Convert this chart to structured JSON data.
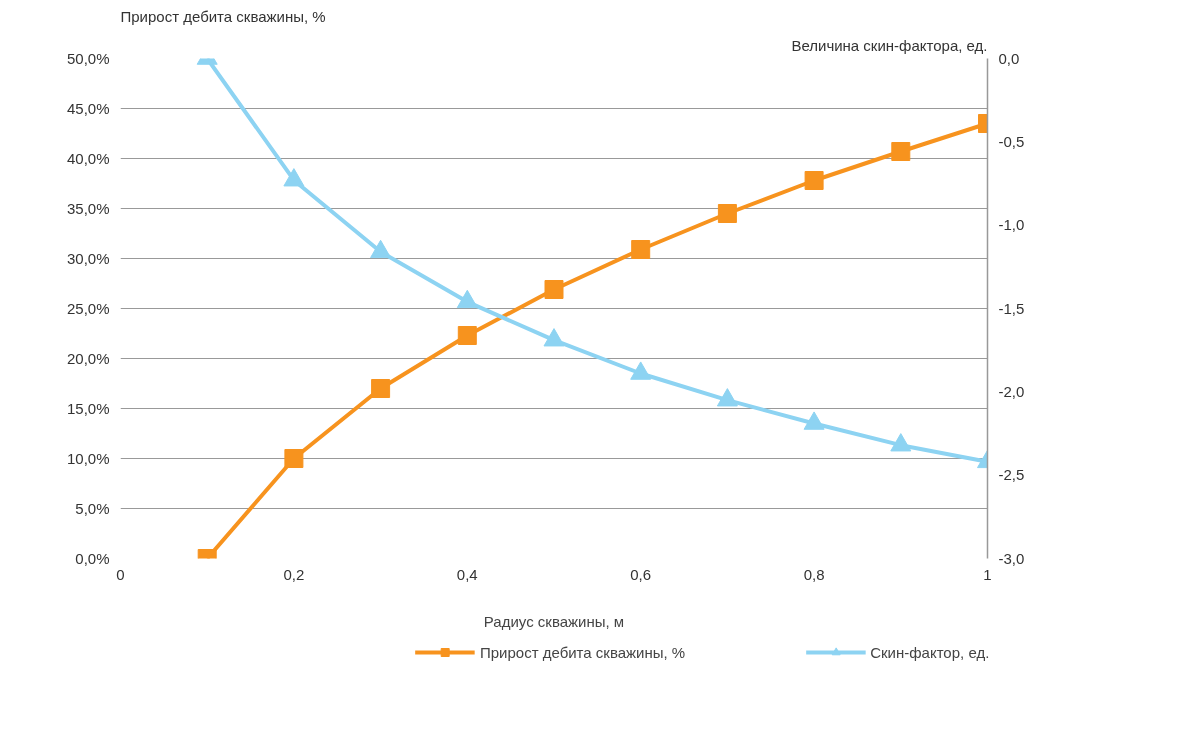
{
  "chart_data": {
    "type": "line",
    "xlabel": "Радиус скважины, м",
    "ylabel": "Прирост дебита скважины, %",
    "y2label": "Величина скин-фактора, ед.",
    "x": [
      0.1,
      0.2,
      0.3,
      0.4,
      0.5,
      0.6,
      0.7,
      0.8,
      0.9,
      1.0
    ],
    "series": [
      {
        "name": "Прирост дебита скважины, %",
        "color": "#f7931e",
        "marker": "square",
        "values": [
          0,
          10.0,
          17.0,
          22.3,
          26.9,
          30.9,
          34.5,
          37.8,
          40.7,
          43.5
        ]
      },
      {
        "name": "Скин-фактор, ед.",
        "color": "#8dd3f2",
        "marker": "triangle",
        "axis": "y2",
        "values": [
          0,
          -0.73,
          -1.16,
          -1.46,
          -1.69,
          -1.89,
          -2.05,
          -2.19,
          -2.32,
          -2.42
        ]
      }
    ],
    "xlim": [
      0,
      1
    ],
    "xticks": [
      0,
      {
        "value": 0.2,
        "label": "0,2"
      },
      {
        "value": 0.4,
        "label": "0,4"
      },
      {
        "value": 0.6,
        "label": "0,6"
      },
      {
        "value": 0.8,
        "label": "0,8"
      },
      1
    ],
    "ylim": [
      0,
      50
    ],
    "yticks": [
      {
        "value": 0,
        "label": "0,0%"
      },
      {
        "value": 5,
        "label": "5,0%"
      },
      {
        "value": 10,
        "label": "10,0%"
      },
      {
        "value": 15,
        "label": "15,0%"
      },
      {
        "value": 20,
        "label": "20,0%"
      },
      {
        "value": 25,
        "label": "25,0%"
      },
      {
        "value": 30,
        "label": "30,0%"
      },
      {
        "value": 35,
        "label": "35,0%"
      },
      {
        "value": 40,
        "label": "40,0%"
      },
      {
        "value": 45,
        "label": "45,0%"
      },
      {
        "value": 50,
        "label": "50,0%"
      }
    ],
    "y2lim": [
      -3,
      0
    ],
    "y2ticks": [
      {
        "value": -3,
        "label": "-3,0"
      },
      {
        "value": -2.5,
        "label": "-2,5"
      },
      {
        "value": -2,
        "label": "-2,0"
      },
      {
        "value": -1.5,
        "label": "-1,5"
      },
      {
        "value": -1,
        "label": "-1,0"
      },
      {
        "value": -0.5,
        "label": "-0,5"
      },
      {
        "value": 0,
        "label": "0,0"
      }
    ],
    "grid": "y",
    "legend": "bottom",
    "line_style": "solid"
  }
}
